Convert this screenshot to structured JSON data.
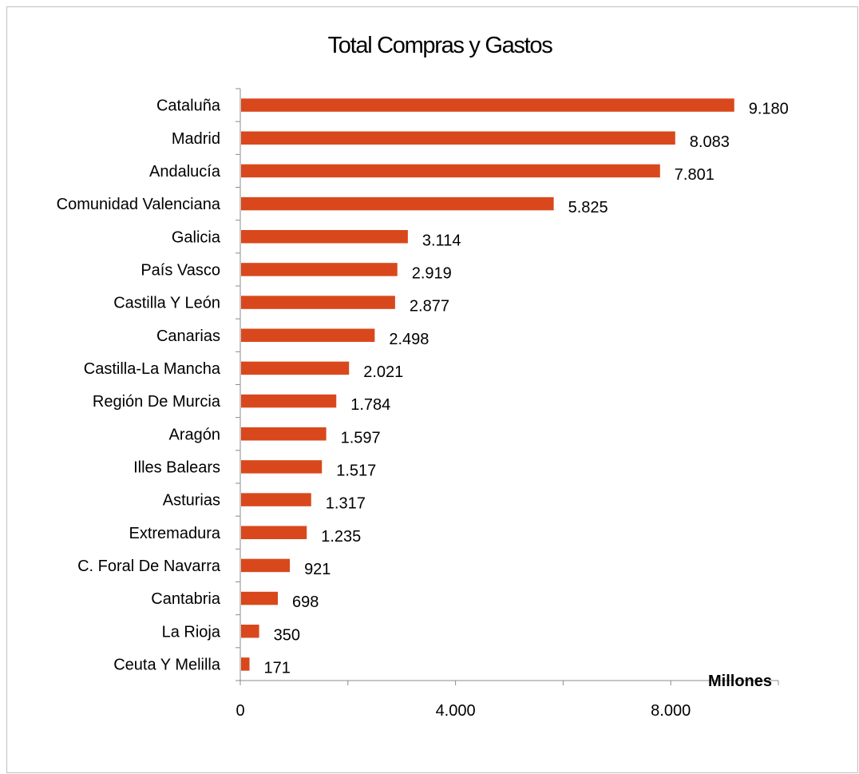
{
  "chart_data": {
    "type": "bar",
    "orientation": "horizontal",
    "title": "Total Compras y Gastos",
    "unit_label": "Millones",
    "categories": [
      "Cataluña",
      "Madrid",
      "Andalucía",
      "Comunidad Valenciana",
      "Galicia",
      "País Vasco",
      "Castilla Y León",
      "Canarias",
      "Castilla-La Mancha",
      "Región De Murcia",
      "Aragón",
      "Illes Balears",
      "Asturias",
      "Extremadura",
      "C. Foral De Navarra",
      "Cantabria",
      "La Rioja",
      "Ceuta Y Melilla"
    ],
    "values": [
      9180,
      8083,
      7801,
      5825,
      3114,
      2919,
      2877,
      2498,
      2021,
      1784,
      1597,
      1517,
      1317,
      1235,
      921,
      698,
      350,
      171
    ],
    "value_labels": [
      "9.180",
      "8.083",
      "7.801",
      "5.825",
      "3.114",
      "2.919",
      "2.877",
      "2.498",
      "2.021",
      "1.784",
      "1.597",
      "1.517",
      "1.317",
      "1.235",
      "921",
      "698",
      "350",
      "171"
    ],
    "xlim": [
      0,
      10000
    ],
    "x_ticks": [
      0,
      4000,
      8000
    ],
    "x_tick_labels": [
      "0",
      "4.000",
      "8.000"
    ],
    "grid": false,
    "legend": "none",
    "bar_color": "#D9481C"
  }
}
